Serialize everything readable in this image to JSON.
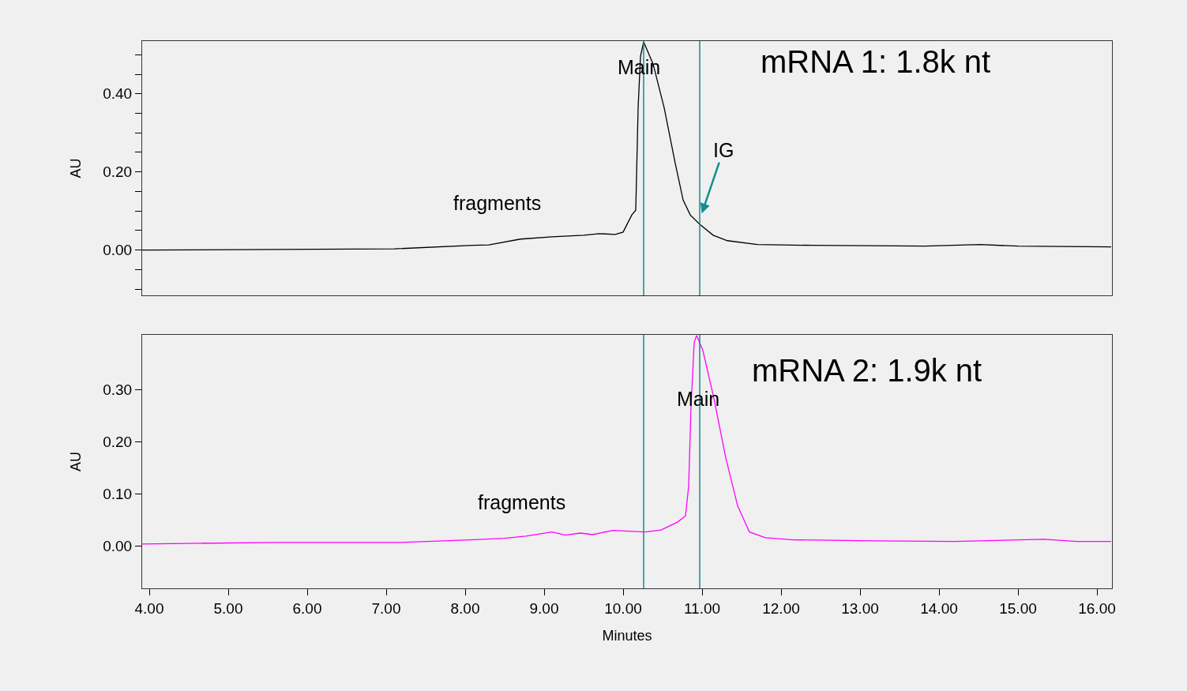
{
  "chart_data": [
    {
      "type": "line",
      "title": "mRNA 1: 1.8k nt",
      "ylabel": "AU",
      "xlim": [
        3.91,
        16.19
      ],
      "ylim": [
        -0.116,
        0.535
      ],
      "tick_labels": "y",
      "grid": false,
      "marker": "none",
      "line_style": "solid",
      "yticks": [
        {
          "value": -0.1,
          "label": null
        },
        {
          "value": -0.05,
          "label": null
        },
        {
          "value": 0,
          "label": "0.00"
        },
        {
          "value": 0.05,
          "label": null
        },
        {
          "value": 0.1,
          "label": null
        },
        {
          "value": 0.15,
          "label": null
        },
        {
          "value": 0.2,
          "label": "0.20"
        },
        {
          "value": 0.25,
          "label": null
        },
        {
          "value": 0.3,
          "label": null
        },
        {
          "value": 0.35,
          "label": null
        },
        {
          "value": 0.4,
          "label": "0.40"
        },
        {
          "value": 0.45,
          "label": null
        },
        {
          "value": 0.5,
          "label": null
        }
      ],
      "x": [
        3.91,
        6.1,
        7.1,
        8.1,
        8.3,
        8.7,
        9.1,
        9.5,
        9.7,
        9.9,
        10.0,
        10.11,
        10.16,
        10.19,
        10.22,
        10.26,
        10.38,
        10.52,
        10.66,
        10.76,
        10.85,
        10.97,
        11.14,
        11.32,
        11.7,
        12.4,
        13.82,
        14.52,
        15.0,
        16.18
      ],
      "series": [
        {
          "color": "#000000",
          "values": [
            0.0,
            0.002,
            0.003,
            0.012,
            0.013,
            0.028,
            0.034,
            0.038,
            0.042,
            0.04,
            0.046,
            0.09,
            0.102,
            0.364,
            0.496,
            0.533,
            0.476,
            0.364,
            0.222,
            0.128,
            0.09,
            0.066,
            0.038,
            0.024,
            0.014,
            0.012,
            0.01,
            0.014,
            0.01,
            0.008
          ]
        }
      ],
      "ref_lines": [
        {
          "axis": "x",
          "value": 10.26,
          "color": "#138d8d"
        },
        {
          "axis": "x",
          "value": 10.97,
          "color": "#138d8d"
        }
      ],
      "annotations": [
        {
          "text": "Main",
          "x": 10.2,
          "y": 0.468
        },
        "fragments",
        {
          "text": "IG",
          "x": 10.99,
          "y": 0.09
        }
      ]
    },
    {
      "type": "line",
      "title": "mRNA 2: 1.9k nt",
      "xlabel": "Minutes",
      "ylabel": "AU",
      "xlim": [
        3.91,
        16.19
      ],
      "ylim": [
        -0.081,
        0.405
      ],
      "grid": false,
      "marker": "none",
      "line_style": "solid",
      "xticks": [
        {
          "value": 4,
          "label": "4.00"
        },
        {
          "value": 5,
          "label": "5.00"
        },
        {
          "value": 6,
          "label": "6.00"
        },
        {
          "value": 7,
          "label": "7.00"
        },
        {
          "value": 8,
          "label": "8.00"
        },
        {
          "value": 9,
          "label": "9.00"
        },
        {
          "value": 10,
          "label": "10.00"
        },
        {
          "value": 11,
          "label": "11.00"
        },
        {
          "value": 12,
          "label": "12.00"
        },
        {
          "value": 13,
          "label": "13.00"
        },
        {
          "value": 14,
          "label": "14.00"
        },
        {
          "value": 15,
          "label": "15.00"
        },
        {
          "value": 16,
          "label": "16.00"
        }
      ],
      "yticks": [
        {
          "value": 0,
          "label": "0.00"
        },
        {
          "value": 0.1,
          "label": "0.10"
        },
        {
          "value": 0.2,
          "label": "0.20"
        },
        {
          "value": 0.3,
          "label": "0.30"
        }
      ],
      "x": [
        3.91,
        5.6,
        7.17,
        8.06,
        8.5,
        8.77,
        9.1,
        9.27,
        9.46,
        9.61,
        9.87,
        10.28,
        10.48,
        10.69,
        10.79,
        10.83,
        10.86,
        10.9,
        10.93,
        11.01,
        11.15,
        11.3,
        11.45,
        11.6,
        11.8,
        12.16,
        13.18,
        14.2,
        15.33,
        15.74,
        16.18
      ],
      "series": [
        {
          "color": "#ff00ff",
          "values": [
            0.004,
            0.007,
            0.007,
            0.012,
            0.015,
            0.019,
            0.027,
            0.021,
            0.025,
            0.022,
            0.03,
            0.027,
            0.031,
            0.046,
            0.058,
            0.115,
            0.268,
            0.39,
            0.404,
            0.375,
            0.283,
            0.169,
            0.077,
            0.027,
            0.016,
            0.012,
            0.01,
            0.009,
            0.013,
            0.009,
            0.009
          ]
        }
      ],
      "ref_lines": [
        {
          "axis": "x",
          "value": 10.26,
          "color": "#138d8d"
        },
        {
          "axis": "x",
          "value": 10.97,
          "color": "#138d8d"
        }
      ],
      "annotations": [
        {
          "text": "Main",
          "x": 10.95,
          "y": 0.283
        },
        "fragments"
      ]
    }
  ]
}
